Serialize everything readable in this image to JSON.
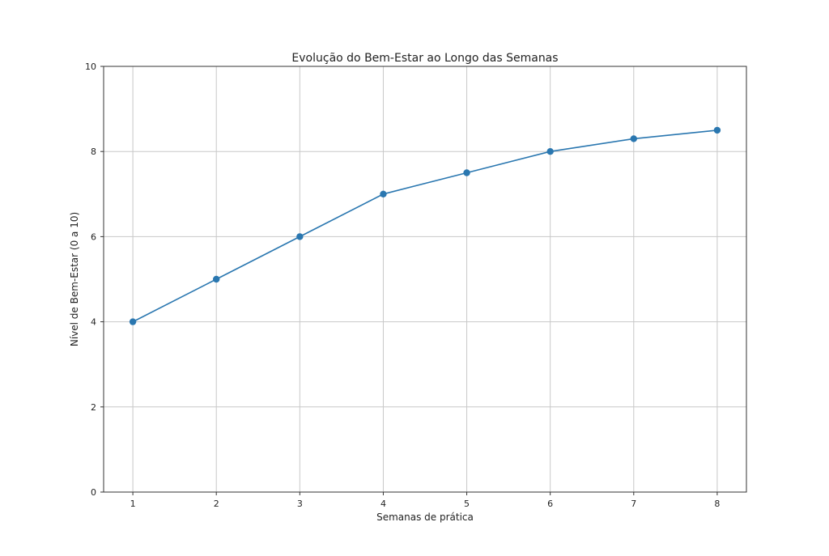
{
  "chart_data": {
    "type": "line",
    "title": "Evolução do Bem-Estar ao Longo das Semanas",
    "xlabel": "Semanas de prática",
    "ylabel": "Nível de Bem-Estar (0 a 10)",
    "x": [
      1,
      2,
      3,
      4,
      5,
      6,
      7,
      8
    ],
    "series": [
      {
        "values": [
          4,
          5,
          6,
          7,
          7.5,
          8,
          8.3,
          8.5
        ],
        "color": "#2a77b0",
        "marker": "circle"
      }
    ],
    "xticks": [
      "1",
      "2",
      "3",
      "4",
      "5",
      "6",
      "7",
      "8"
    ],
    "yticks": [
      "0",
      "2",
      "4",
      "6",
      "8",
      "10"
    ],
    "xlim": [
      0.65,
      8.35
    ],
    "ylim": [
      0,
      10
    ],
    "grid": true,
    "legend": "none"
  }
}
